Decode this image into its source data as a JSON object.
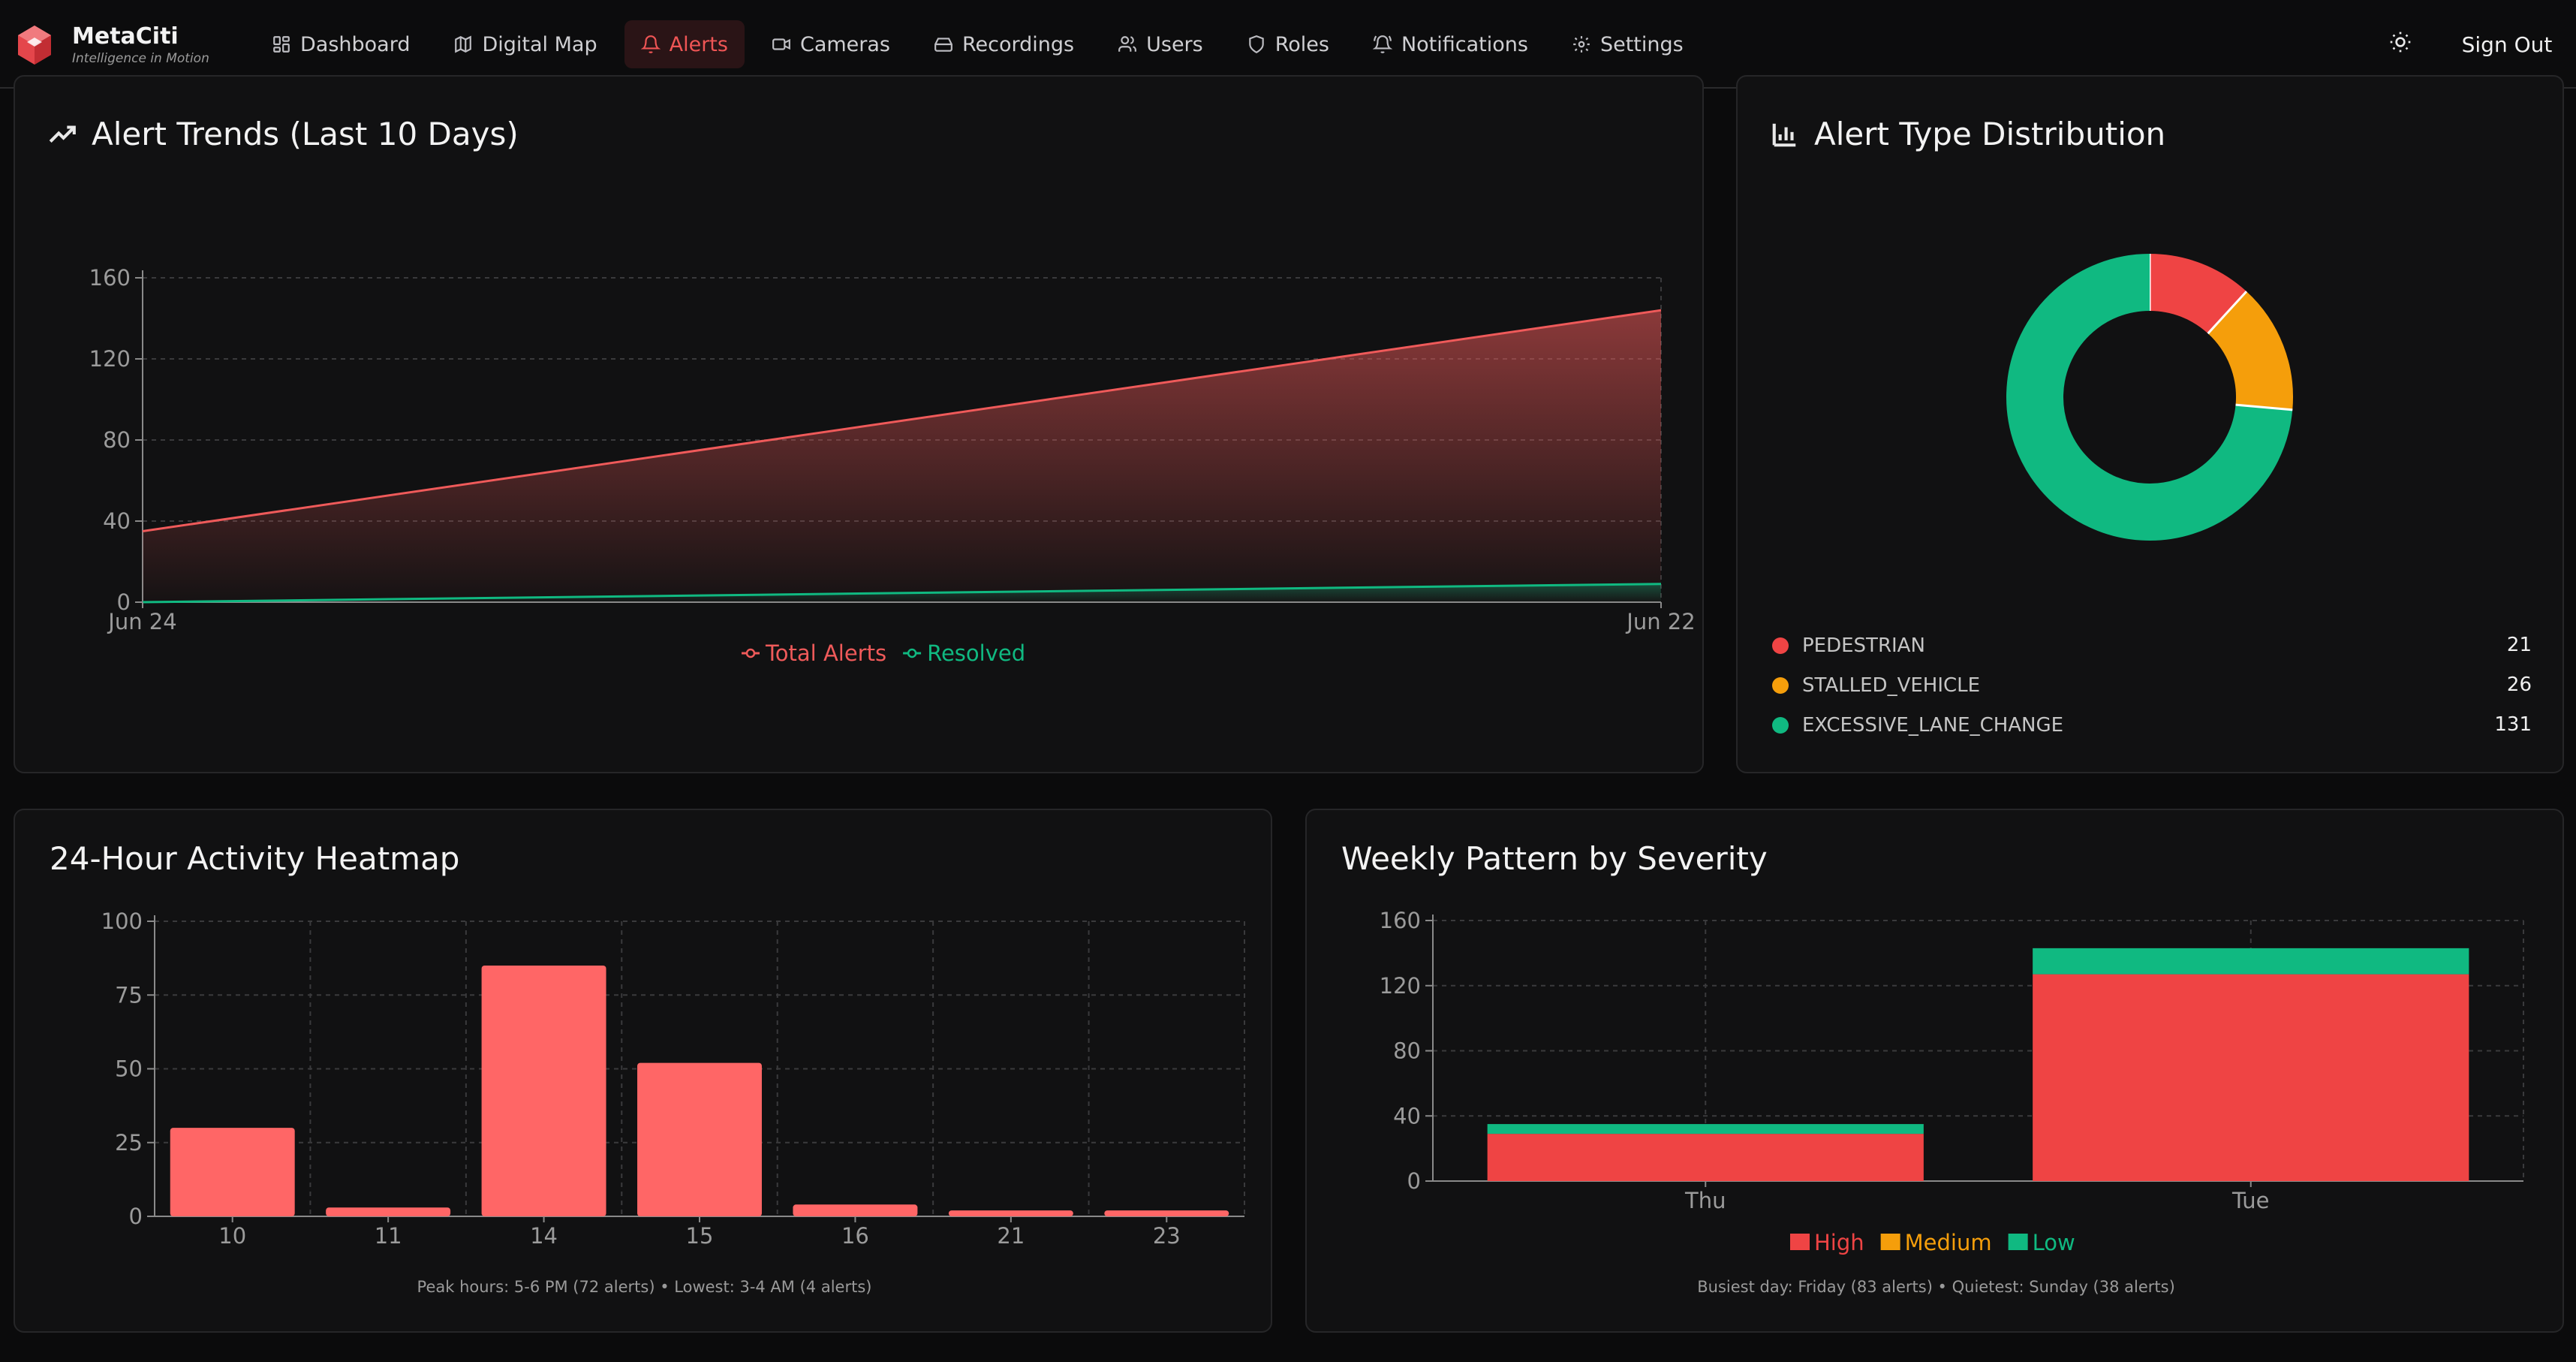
{
  "app": {
    "name": "MetaCiti",
    "tagline": "Intelligence in Motion"
  },
  "nav": {
    "items": [
      {
        "label": "Dashboard",
        "icon": "dashboard-icon"
      },
      {
        "label": "Digital Map",
        "icon": "map-icon"
      },
      {
        "label": "Alerts",
        "icon": "bell-icon",
        "active": true
      },
      {
        "label": "Cameras",
        "icon": "video-icon"
      },
      {
        "label": "Recordings",
        "icon": "hard-drive-icon"
      },
      {
        "label": "Users",
        "icon": "users-icon"
      },
      {
        "label": "Roles",
        "icon": "shield-icon"
      },
      {
        "label": "Notifications",
        "icon": "bell-ring-icon"
      },
      {
        "label": "Settings",
        "icon": "gear-icon"
      }
    ],
    "theme_toggle_icon": "sun-icon",
    "sign_out": "Sign Out"
  },
  "colors": {
    "accent": "#ef4444",
    "high": "#ef4444",
    "medium": "#f59e0b",
    "low": "#10b981",
    "bar": "#ff6666"
  },
  "panels": {
    "trends": {
      "title": "Alert Trends (Last 10 Days)",
      "icon": "trending-up-icon"
    },
    "distribution": {
      "title": "Alert Type Distribution",
      "icon": "bar-chart-icon",
      "legend": [
        {
          "label": "PEDESTRIAN",
          "count": "21",
          "color": "#ef4444"
        },
        {
          "label": "STALLED_VEHICLE",
          "count": "26",
          "color": "#f59e0b"
        },
        {
          "label": "EXCESSIVE_LANE_CHANGE",
          "count": "131",
          "color": "#10b981"
        }
      ]
    },
    "heatmap": {
      "title": "24-Hour Activity Heatmap",
      "footnote": "Peak hours: 5-6 PM (72 alerts) • Lowest: 3-4 AM (4 alerts)"
    },
    "weekly": {
      "title": "Weekly Pattern by Severity",
      "footnote": "Busiest day: Friday (83 alerts) • Quietest: Sunday (38 alerts)"
    }
  },
  "chart_data": [
    {
      "type": "area",
      "title": "Alert Trends (Last 10 Days)",
      "x": [
        "Jun 24",
        "Jun 22"
      ],
      "ylim": [
        0,
        160
      ],
      "yticks": [
        0,
        40,
        80,
        120,
        160
      ],
      "grid": true,
      "legend_position": "bottom",
      "series": [
        {
          "name": "Total Alerts",
          "values": [
            35,
            144
          ],
          "color": "#ef5a5a"
        },
        {
          "name": "Resolved",
          "values": [
            0,
            9
          ],
          "color": "#10b981"
        }
      ]
    },
    {
      "type": "pie",
      "title": "Alert Type Distribution",
      "donut": true,
      "categories": [
        "PEDESTRIAN",
        "STALLED_VEHICLE",
        "EXCESSIVE_LANE_CHANGE"
      ],
      "values": [
        21,
        26,
        131
      ],
      "colors": [
        "#ef4444",
        "#f59e0b",
        "#10b981"
      ]
    },
    {
      "type": "bar",
      "title": "24-Hour Activity Heatmap",
      "categories": [
        "10",
        "11",
        "14",
        "15",
        "16",
        "21",
        "23"
      ],
      "values": [
        30,
        3,
        85,
        52,
        4,
        2,
        2
      ],
      "ylim": [
        0,
        100
      ],
      "yticks": [
        0,
        25,
        50,
        75,
        100
      ],
      "grid": true,
      "color": "#ff6666"
    },
    {
      "type": "bar",
      "stacked": true,
      "title": "Weekly Pattern by Severity",
      "categories": [
        "Thu",
        "Tue"
      ],
      "ylim": [
        0,
        160
      ],
      "yticks": [
        0,
        40,
        80,
        120,
        160
      ],
      "grid": true,
      "legend_position": "bottom",
      "series": [
        {
          "name": "High",
          "values": [
            29,
            127
          ],
          "color": "#ef4444"
        },
        {
          "name": "Medium",
          "values": [
            0,
            0
          ],
          "color": "#f59e0b"
        },
        {
          "name": "Low",
          "values": [
            6,
            16
          ],
          "color": "#10b981"
        }
      ]
    }
  ]
}
